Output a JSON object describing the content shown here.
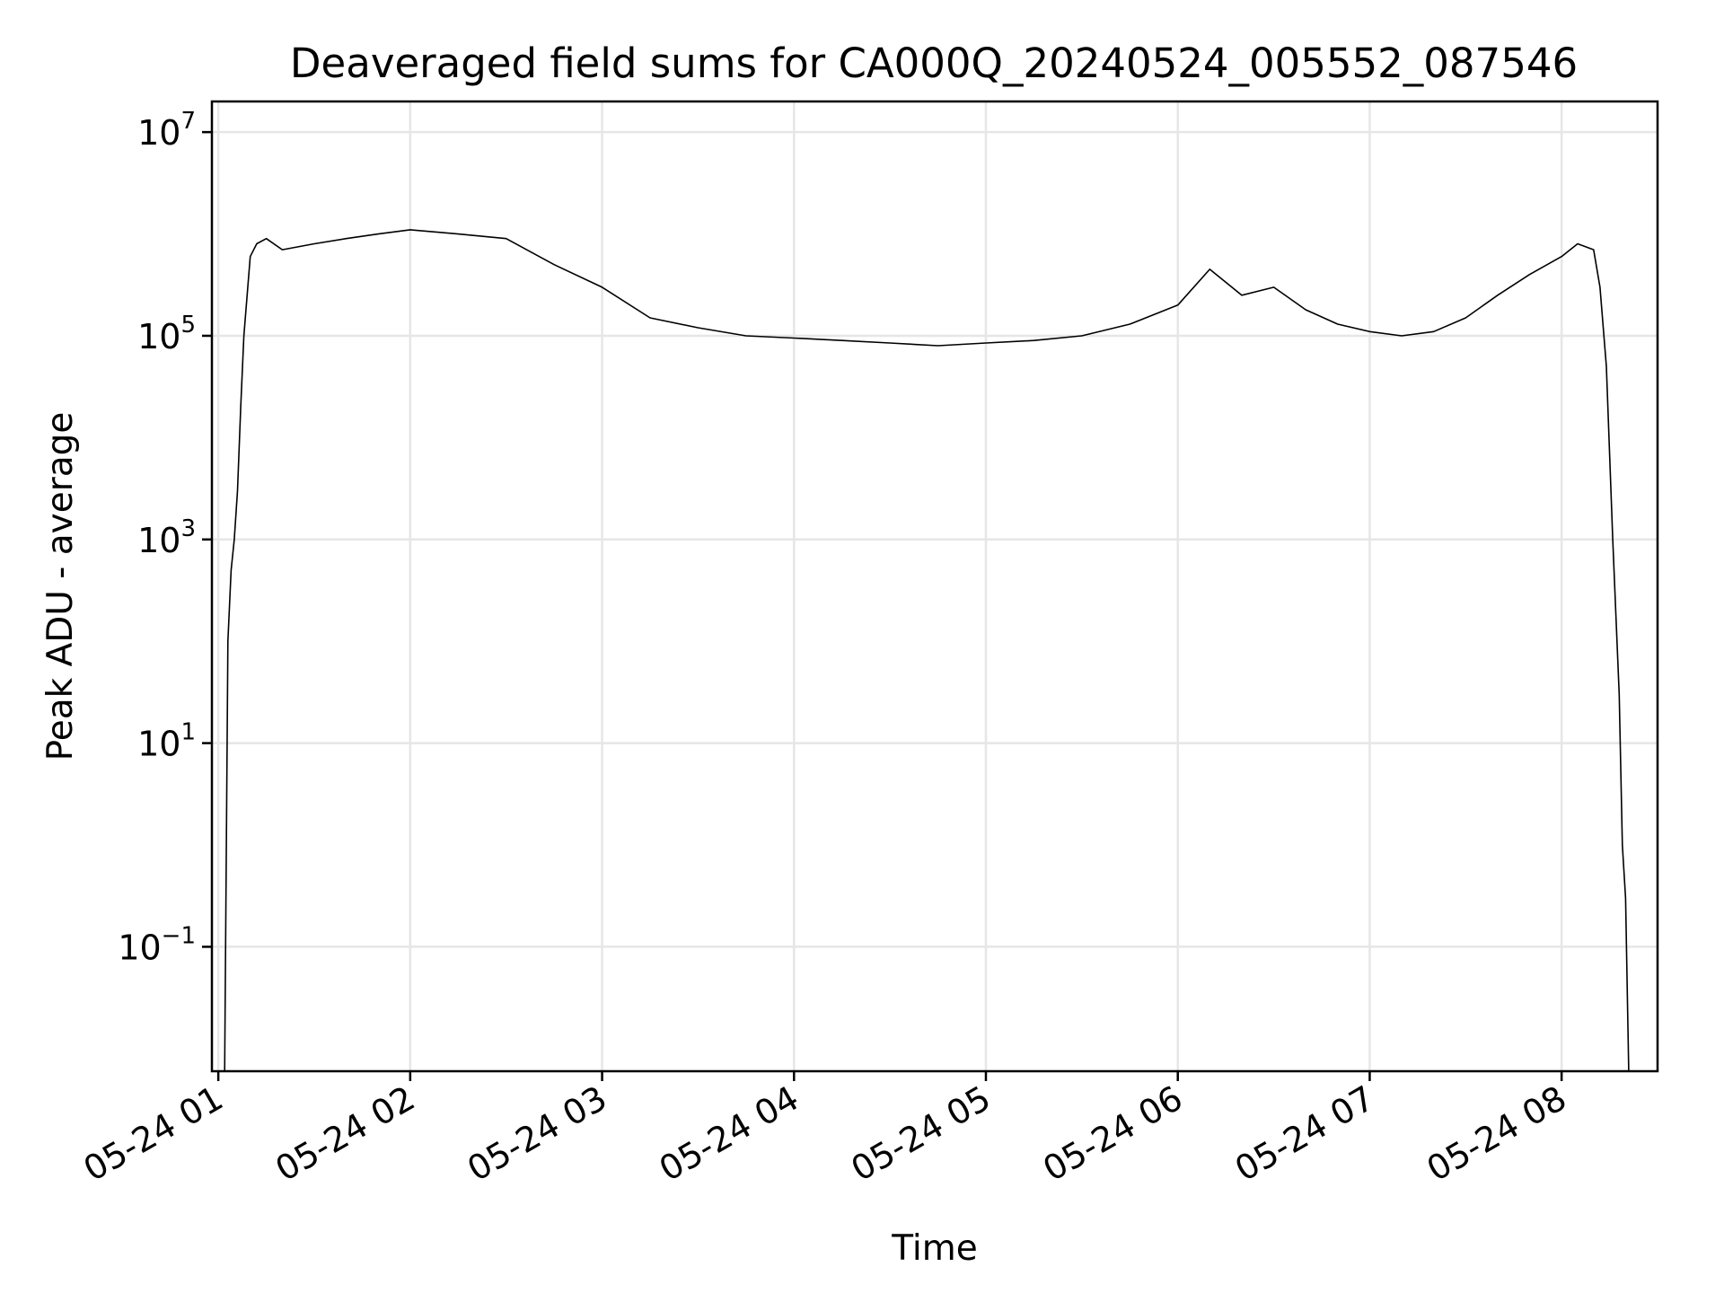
{
  "chart_data": {
    "type": "line",
    "title": "Deaveraged field sums for CA000Q_20240524_005552_087546",
    "xlabel": "Time",
    "ylabel": "Peak ADU - average",
    "yscale": "log",
    "ylim": [
      0.006,
      20000000
    ],
    "xlim": [
      "2024-05-24 00:58",
      "2024-05-24 08:30"
    ],
    "grid": true,
    "line_color": "#000000",
    "grid_color": "#e6e6e6",
    "x_ticks": [
      {
        "value": "2024-05-24 01:00",
        "label": "05-24 01"
      },
      {
        "value": "2024-05-24 02:00",
        "label": "05-24 02"
      },
      {
        "value": "2024-05-24 03:00",
        "label": "05-24 03"
      },
      {
        "value": "2024-05-24 04:00",
        "label": "05-24 04"
      },
      {
        "value": "2024-05-24 05:00",
        "label": "05-24 05"
      },
      {
        "value": "2024-05-24 06:00",
        "label": "05-24 06"
      },
      {
        "value": "2024-05-24 07:00",
        "label": "05-24 07"
      },
      {
        "value": "2024-05-24 08:00",
        "label": "05-24 08"
      }
    ],
    "y_ticks": [
      {
        "value": 0.1,
        "base": "10",
        "exp": "−1"
      },
      {
        "value": 10,
        "base": "10",
        "exp": "1"
      },
      {
        "value": 1000,
        "base": "10",
        "exp": "3"
      },
      {
        "value": 100000,
        "base": "10",
        "exp": "5"
      },
      {
        "value": 10000000,
        "base": "10",
        "exp": "7"
      }
    ],
    "series": [
      {
        "x": [
          "2024-05-24 01:02",
          "2024-05-24 01:03",
          "2024-05-24 01:04",
          "2024-05-24 01:05",
          "2024-05-24 01:06",
          "2024-05-24 01:07",
          "2024-05-24 01:08",
          "2024-05-24 01:10",
          "2024-05-24 01:12",
          "2024-05-24 01:15",
          "2024-05-24 01:20",
          "2024-05-24 01:30",
          "2024-05-24 01:40",
          "2024-05-24 01:50",
          "2024-05-24 02:00",
          "2024-05-24 02:15",
          "2024-05-24 02:30",
          "2024-05-24 02:45",
          "2024-05-24 03:00",
          "2024-05-24 03:15",
          "2024-05-24 03:30",
          "2024-05-24 03:45",
          "2024-05-24 04:00",
          "2024-05-24 04:15",
          "2024-05-24 04:30",
          "2024-05-24 04:45",
          "2024-05-24 05:00",
          "2024-05-24 05:15",
          "2024-05-24 05:30",
          "2024-05-24 05:45",
          "2024-05-24 06:00",
          "2024-05-24 06:10",
          "2024-05-24 06:20",
          "2024-05-24 06:30",
          "2024-05-24 06:40",
          "2024-05-24 06:50",
          "2024-05-24 07:00",
          "2024-05-24 07:10",
          "2024-05-24 07:20",
          "2024-05-24 07:30",
          "2024-05-24 07:40",
          "2024-05-24 07:50",
          "2024-05-24 08:00",
          "2024-05-24 08:05",
          "2024-05-24 08:10",
          "2024-05-24 08:12",
          "2024-05-24 08:14",
          "2024-05-24 08:16",
          "2024-05-24 08:18",
          "2024-05-24 08:19",
          "2024-05-24 08:20",
          "2024-05-24 08:21"
        ],
        "y": [
          0.006,
          100,
          500,
          1000,
          3000,
          20000,
          100000,
          600000,
          800000,
          900000,
          700000,
          800000,
          900000,
          1000000,
          1100000,
          1000000,
          900000,
          500000,
          300000,
          150000,
          120000,
          100000,
          95000,
          90000,
          85000,
          80000,
          85000,
          90000,
          100000,
          130000,
          200000,
          450000,
          250000,
          300000,
          180000,
          130000,
          110000,
          100000,
          110000,
          150000,
          250000,
          400000,
          600000,
          800000,
          700000,
          300000,
          50000,
          1000,
          30,
          1,
          0.3,
          0.006
        ]
      }
    ]
  }
}
